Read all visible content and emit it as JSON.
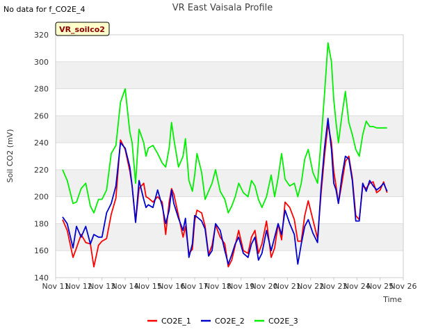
{
  "header": {
    "nodata": "No data for f_CO2E_4",
    "title": "VR East Vaisala Profile"
  },
  "badge": {
    "label": "VR_soilco2"
  },
  "chart_data": {
    "type": "line",
    "title": "VR East Vaisala Profile",
    "xlabel": "Time",
    "ylabel": "Soil CO2 (mV)",
    "ylim": [
      140,
      320
    ],
    "yticks": [
      140,
      160,
      180,
      200,
      220,
      240,
      260,
      280,
      300,
      320
    ],
    "xlim": [
      11,
      26
    ],
    "xticks": [
      11,
      12,
      13,
      14,
      15,
      16,
      17,
      18,
      19,
      20,
      21,
      22,
      23,
      24,
      25,
      26
    ],
    "xtick_labels": [
      "Nov 11",
      "Nov 12",
      "Nov 13",
      "Nov 14",
      "Nov 15",
      "Nov 16",
      "Nov 17",
      "Nov 18",
      "Nov 19",
      "Nov 20",
      "Nov 21",
      "Nov 22",
      "Nov 23",
      "Nov 24",
      "Nov 25",
      "Nov 26"
    ],
    "grid": true,
    "legend_position": "bottom",
    "series": [
      {
        "name": "CO2E_1",
        "color": "#ff0000",
        "x": [
          11.3,
          11.5,
          11.75,
          11.9,
          12.1,
          12.3,
          12.5,
          12.65,
          12.85,
          13.0,
          13.2,
          13.4,
          13.6,
          13.8,
          14.0,
          14.2,
          14.3,
          14.45,
          14.6,
          14.8,
          14.9,
          15.0,
          15.2,
          15.4,
          15.6,
          15.75,
          15.9,
          16.0,
          16.1,
          16.3,
          16.5,
          16.6,
          16.75,
          16.9,
          17.0,
          17.1,
          17.3,
          17.45,
          17.6,
          17.75,
          17.9,
          18.1,
          18.3,
          18.45,
          18.6,
          18.75,
          18.9,
          19.1,
          19.3,
          19.45,
          19.6,
          19.75,
          19.9,
          20.1,
          20.3,
          20.45,
          20.6,
          20.75,
          20.9,
          21.1,
          21.3,
          21.45,
          21.6,
          21.75,
          21.9,
          22.1,
          22.3,
          22.45,
          22.6,
          22.75,
          22.9,
          23.0,
          23.1,
          23.2,
          23.35,
          23.5,
          23.65,
          23.8,
          23.95,
          24.1,
          24.25,
          24.4,
          24.55,
          24.7,
          24.85,
          25.0,
          25.15,
          25.3
        ],
        "values": [
          183,
          175,
          155,
          162,
          172,
          166,
          165,
          148,
          164,
          167,
          169,
          187,
          199,
          242,
          235,
          219,
          208,
          181,
          206,
          210,
          200,
          199,
          196,
          200,
          196,
          172,
          196,
          206,
          202,
          186,
          170,
          178,
          158,
          161,
          182,
          190,
          188,
          178,
          157,
          164,
          179,
          170,
          165,
          148,
          153,
          164,
          175,
          160,
          158,
          170,
          175,
          158,
          165,
          182,
          155,
          162,
          180,
          168,
          196,
          192,
          183,
          167,
          167,
          186,
          197,
          183,
          169,
          202,
          230,
          254,
          240,
          219,
          208,
          195,
          210,
          226,
          230,
          214,
          186,
          183,
          208,
          206,
          210,
          211,
          203,
          205,
          211,
          203
        ]
      },
      {
        "name": "CO2E_2",
        "color": "#0000cc",
        "x": [
          11.3,
          11.5,
          11.75,
          11.9,
          12.1,
          12.3,
          12.5,
          12.65,
          12.85,
          13.0,
          13.2,
          13.4,
          13.6,
          13.8,
          14.0,
          14.2,
          14.3,
          14.45,
          14.6,
          14.8,
          14.9,
          15.0,
          15.2,
          15.4,
          15.6,
          15.75,
          15.9,
          16.0,
          16.1,
          16.3,
          16.5,
          16.6,
          16.75,
          16.9,
          17.0,
          17.1,
          17.3,
          17.45,
          17.6,
          17.75,
          17.9,
          18.1,
          18.3,
          18.45,
          18.6,
          18.75,
          18.9,
          19.1,
          19.3,
          19.45,
          19.6,
          19.75,
          19.9,
          20.1,
          20.3,
          20.45,
          20.6,
          20.75,
          20.9,
          21.1,
          21.3,
          21.45,
          21.6,
          21.75,
          21.9,
          22.1,
          22.3,
          22.45,
          22.6,
          22.75,
          22.9,
          23.0,
          23.1,
          23.2,
          23.35,
          23.5,
          23.65,
          23.8,
          23.95,
          24.1,
          24.25,
          24.4,
          24.55,
          24.7,
          24.85,
          25.0,
          25.15,
          25.3
        ],
        "values": [
          185,
          180,
          162,
          178,
          170,
          178,
          165,
          172,
          170,
          170,
          188,
          195,
          208,
          240,
          236,
          222,
          208,
          181,
          212,
          198,
          192,
          194,
          192,
          205,
          193,
          180,
          190,
          205,
          195,
          184,
          175,
          184,
          155,
          165,
          186,
          185,
          182,
          176,
          156,
          160,
          180,
          175,
          160,
          150,
          157,
          165,
          170,
          158,
          155,
          165,
          170,
          153,
          158,
          175,
          160,
          170,
          180,
          172,
          190,
          180,
          172,
          150,
          165,
          178,
          183,
          173,
          166,
          206,
          236,
          258,
          235,
          210,
          205,
          195,
          215,
          230,
          228,
          212,
          182,
          182,
          210,
          204,
          212,
          208,
          205,
          207,
          210,
          204
        ]
      },
      {
        "name": "CO2E_3",
        "color": "#00ee00",
        "x": [
          11.3,
          11.5,
          11.75,
          11.9,
          12.1,
          12.3,
          12.5,
          12.65,
          12.85,
          13.0,
          13.2,
          13.4,
          13.6,
          13.8,
          14.0,
          14.2,
          14.3,
          14.45,
          14.6,
          14.8,
          14.9,
          15.0,
          15.2,
          15.4,
          15.6,
          15.75,
          15.9,
          16.0,
          16.1,
          16.3,
          16.5,
          16.6,
          16.75,
          16.9,
          17.0,
          17.1,
          17.3,
          17.45,
          17.6,
          17.75,
          17.9,
          18.1,
          18.3,
          18.45,
          18.6,
          18.75,
          18.9,
          19.1,
          19.3,
          19.45,
          19.6,
          19.75,
          19.9,
          20.1,
          20.3,
          20.45,
          20.6,
          20.75,
          20.9,
          21.1,
          21.3,
          21.45,
          21.6,
          21.75,
          21.9,
          22.1,
          22.3,
          22.45,
          22.6,
          22.75,
          22.9,
          23.0,
          23.1,
          23.2,
          23.35,
          23.5,
          23.65,
          23.8,
          23.95,
          24.1,
          24.25,
          24.4,
          24.55,
          24.7,
          24.85,
          25.0,
          25.15,
          25.3
        ],
        "values": [
          220,
          212,
          195,
          196,
          206,
          210,
          193,
          188,
          198,
          198,
          205,
          232,
          238,
          270,
          280,
          248,
          240,
          210,
          250,
          240,
          230,
          236,
          238,
          232,
          225,
          222,
          236,
          255,
          243,
          222,
          230,
          243,
          212,
          204,
          216,
          232,
          218,
          198,
          204,
          210,
          220,
          204,
          198,
          188,
          193,
          200,
          210,
          203,
          200,
          212,
          208,
          198,
          192,
          200,
          216,
          200,
          214,
          232,
          213,
          208,
          210,
          200,
          210,
          228,
          235,
          218,
          210,
          241,
          276,
          314,
          300,
          272,
          255,
          240,
          260,
          278,
          255,
          246,
          235,
          230,
          246,
          256,
          252,
          252,
          251,
          251,
          251,
          251
        ]
      }
    ]
  }
}
